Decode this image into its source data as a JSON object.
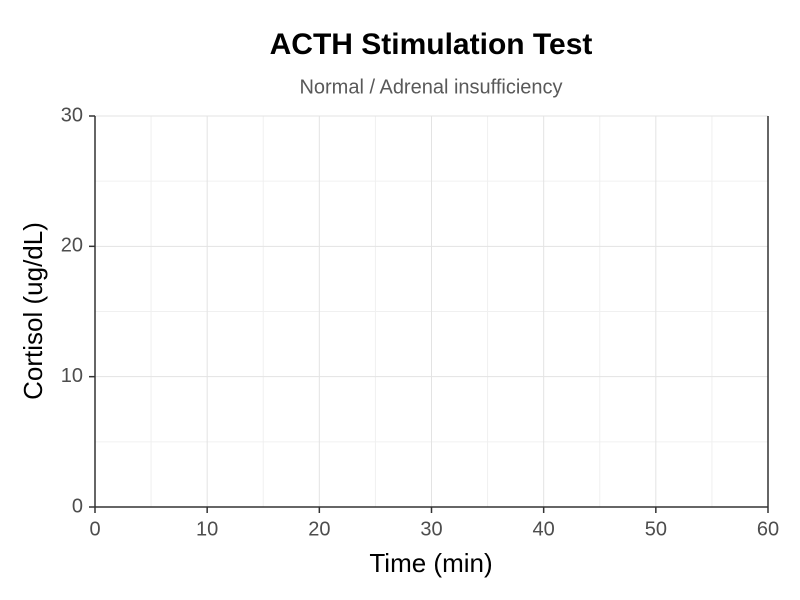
{
  "chart_data": {
    "type": "line",
    "title": "ACTH Stimulation Test",
    "subtitle": "Normal / Adrenal insufficiency",
    "xlabel": "Time (min)",
    "ylabel": "Cortisol (ug/dL)",
    "series": [],
    "xlim": [
      0,
      60
    ],
    "xticks": [
      0,
      10,
      20,
      30,
      40,
      50,
      60
    ],
    "ylim": [
      0,
      30
    ],
    "yticks": [
      0,
      10,
      20,
      30
    ],
    "grid": true,
    "minor_grid": true
  }
}
